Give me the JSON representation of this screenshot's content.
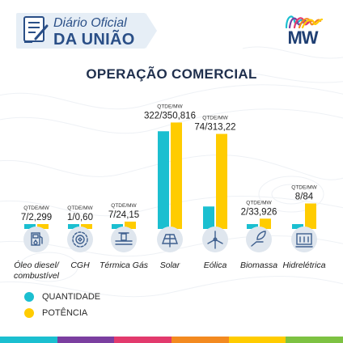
{
  "header": {
    "logo_line1": "Diário Oficial",
    "logo_line2": "DA UNIÃO",
    "brand": "MW"
  },
  "colors": {
    "quantidade": "#1bbfd0",
    "potencia": "#ffcc00",
    "icon_circle": "#dfe6ee",
    "icon_stroke": "#3e5f8e",
    "title": "#1f2f4d",
    "stripe": [
      "#1bbfd0",
      "#7b3fa0",
      "#e23a6d",
      "#f38a20",
      "#ffcc00",
      "#7dc242"
    ]
  },
  "chart_data": {
    "type": "bar",
    "title": "OPERAÇÃO COMERCIAL",
    "categories": [
      "Óleo diesel/ combustível",
      "CGH",
      "Térmica Gás",
      "Solar",
      "Eólica",
      "Biomassa",
      "Hidrelétrica"
    ],
    "category_lines": [
      [
        "Óleo diesel/",
        "combustível"
      ],
      [
        "CGH"
      ],
      [
        "Térmica Gás"
      ],
      [
        "Solar"
      ],
      [
        "Eólica"
      ],
      [
        "Biomassa"
      ],
      [
        "Hidrelétrica"
      ]
    ],
    "icons": [
      "fuel-pump-icon",
      "turbine-gear-icon",
      "gas-pipe-icon",
      "solar-panel-icon",
      "wind-turbine-icon",
      "biomass-hand-leaf-icon",
      "hydro-dam-icon"
    ],
    "series": [
      {
        "name": "QUANTIDADE",
        "values": [
          7,
          1,
          7,
          322,
          74,
          2,
          8
        ]
      },
      {
        "name": "POTÊNCIA",
        "values": [
          2.299,
          0.6,
          24.15,
          350.816,
          313.22,
          33.926,
          84
        ]
      }
    ],
    "unit_label": "QTDE/MW",
    "value_labels": [
      "7/2,299",
      "1/0,60",
      "7/24,15",
      "322/350,816",
      "74/313,22",
      "2/33,926",
      "8/84"
    ],
    "legend_position": "bottom-left"
  }
}
